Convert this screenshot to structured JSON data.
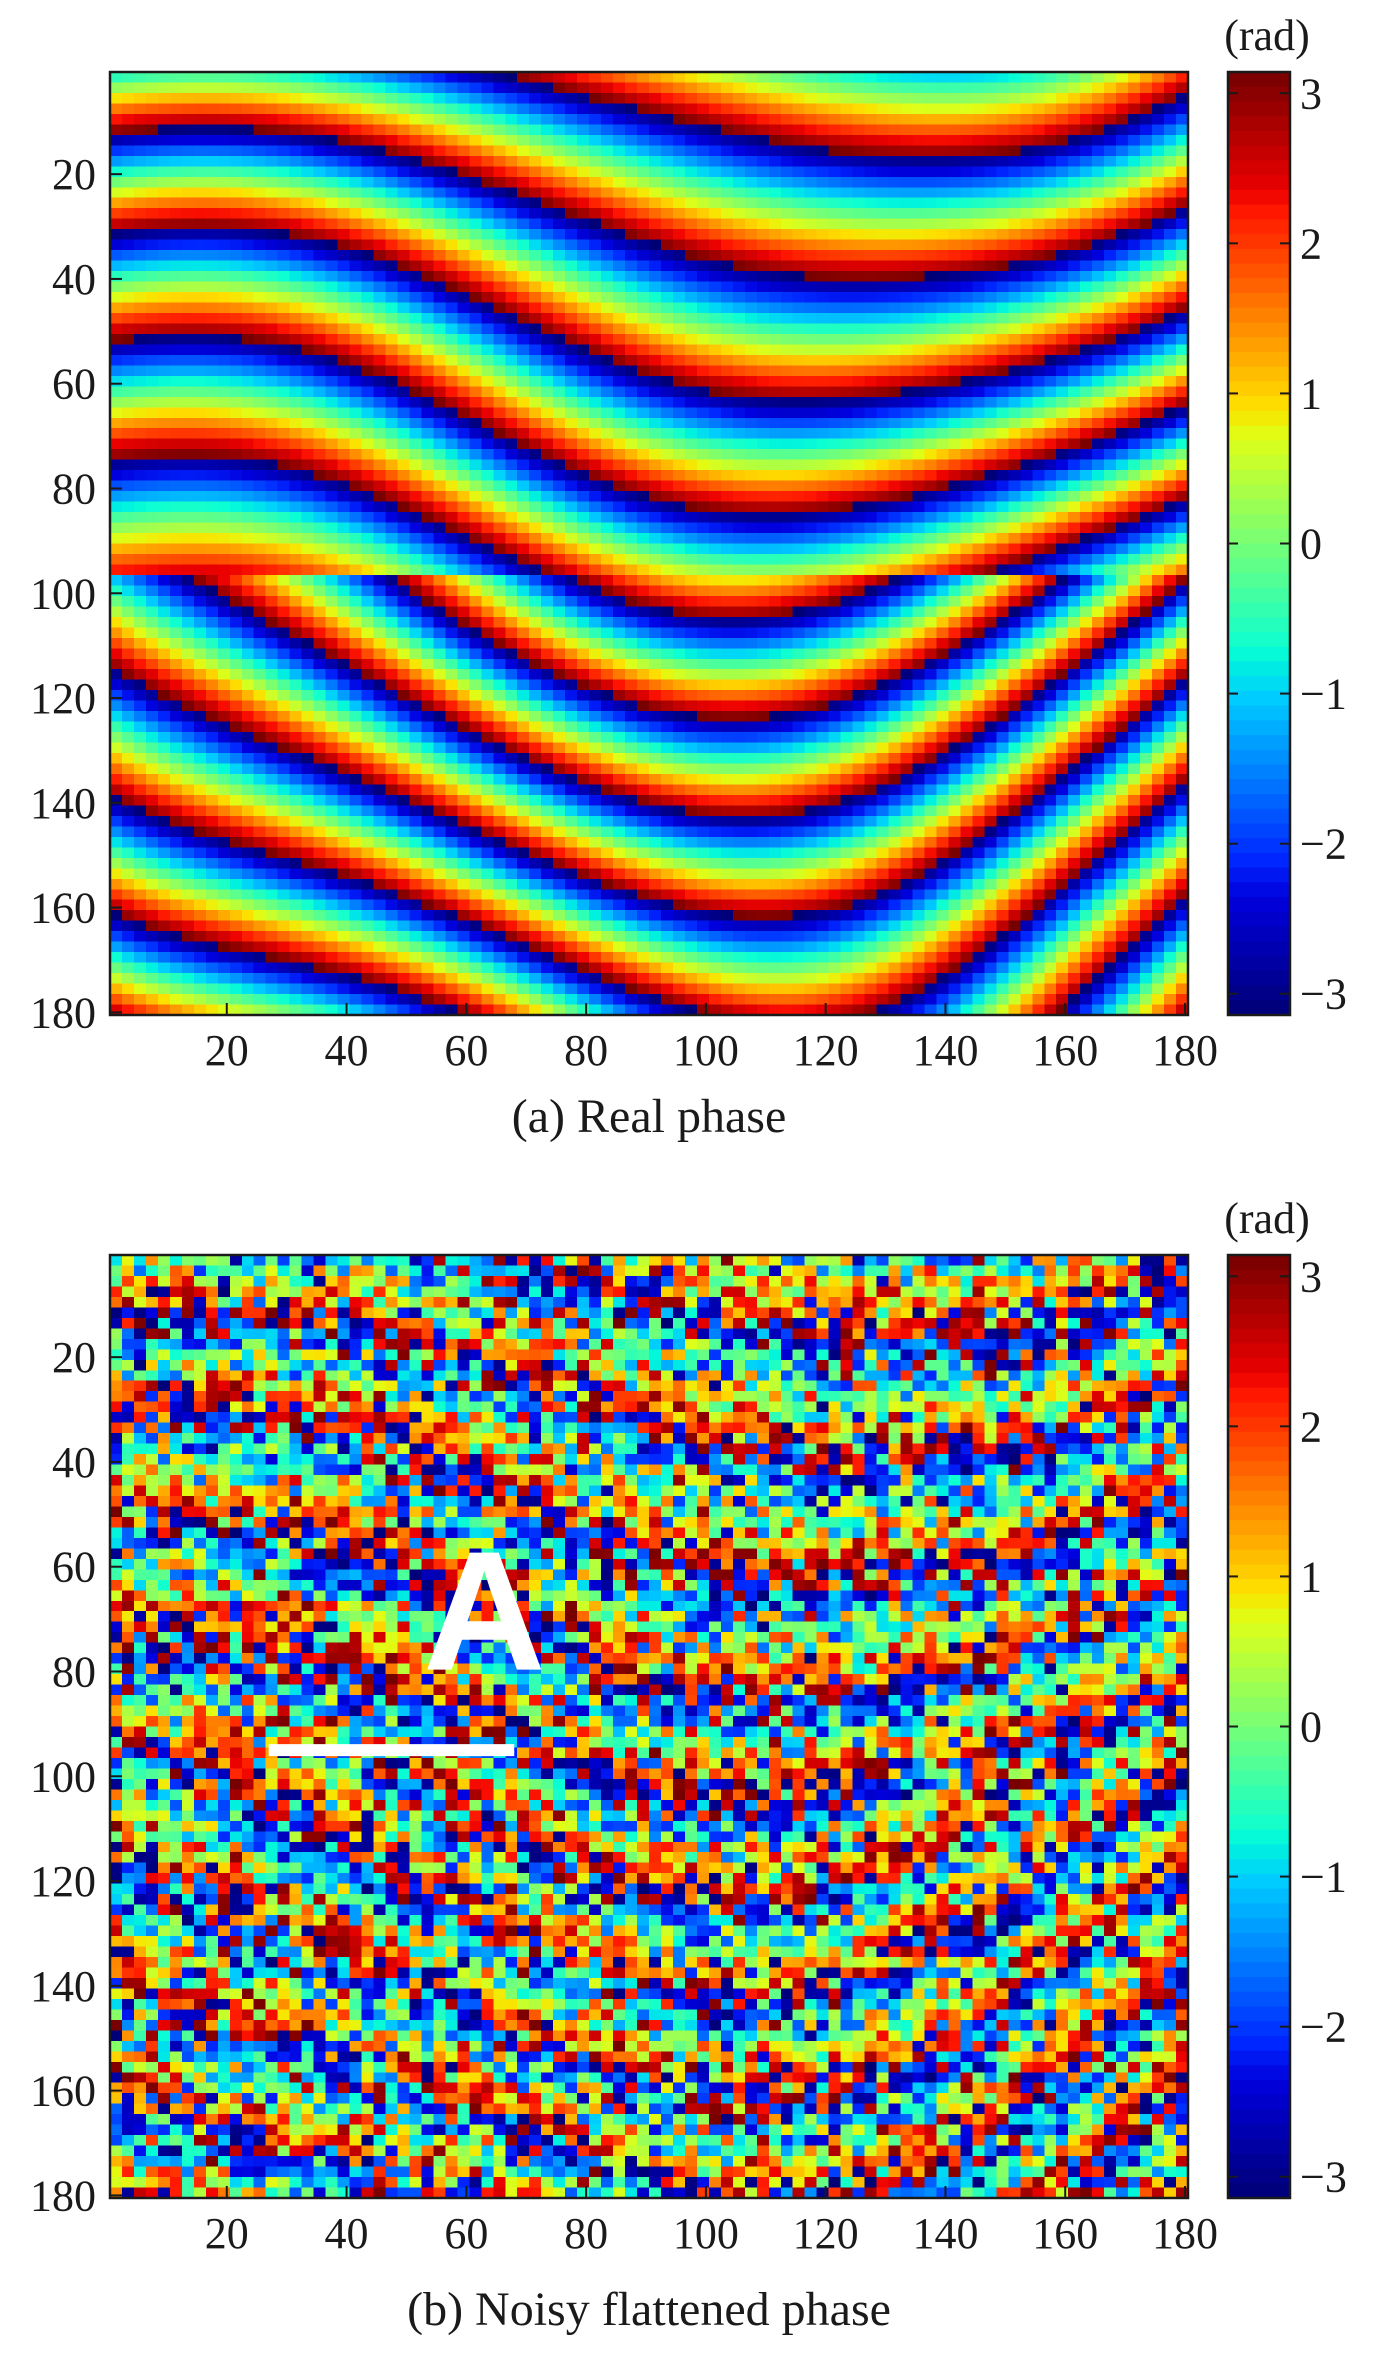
{
  "chart_data": [
    {
      "type": "heatmap",
      "caption": "(a) Real phase",
      "colorbar_unit": "(rad)",
      "colorbar_ticks": [
        "3",
        "2",
        "1",
        "0",
        "−1",
        "−2",
        "−3"
      ],
      "colorbar_values": [
        3,
        2,
        1,
        0,
        -1,
        -2,
        -3
      ],
      "clim": [
        -3.1416,
        3.1416
      ],
      "colormap": "jet",
      "xlim": [
        1,
        180
      ],
      "ylim": [
        1,
        180
      ],
      "y_axis_direction": "top-down",
      "xticks": [
        "20",
        "40",
        "60",
        "80",
        "100",
        "120",
        "140",
        "160",
        "180"
      ],
      "xtick_values": [
        20,
        40,
        60,
        80,
        100,
        120,
        140,
        160,
        180
      ],
      "yticks": [
        "20",
        "40",
        "60",
        "80",
        "100",
        "120",
        "140",
        "160",
        "180"
      ],
      "ytick_values": [
        20,
        40,
        60,
        80,
        100,
        120,
        140,
        160,
        180
      ],
      "noise": false
    },
    {
      "type": "heatmap",
      "caption": "(b) Noisy flattened phase",
      "colorbar_unit": "(rad)",
      "colorbar_ticks": [
        "3",
        "2",
        "1",
        "0",
        "−1",
        "−2",
        "−3"
      ],
      "colorbar_values": [
        3,
        2,
        1,
        0,
        -1,
        -2,
        -3
      ],
      "clim": [
        -3.1416,
        3.1416
      ],
      "colormap": "jet",
      "xlim": [
        1,
        180
      ],
      "ylim": [
        1,
        180
      ],
      "y_axis_direction": "top-down",
      "xticks": [
        "20",
        "40",
        "60",
        "80",
        "100",
        "120",
        "140",
        "160",
        "180"
      ],
      "xtick_values": [
        20,
        40,
        60,
        80,
        100,
        120,
        140,
        160,
        180
      ],
      "yticks": [
        "20",
        "40",
        "60",
        "80",
        "100",
        "120",
        "140",
        "160",
        "180"
      ],
      "ytick_values": [
        20,
        40,
        60,
        80,
        100,
        120,
        140,
        160,
        180
      ],
      "noise": true,
      "annotation": {
        "label": "A",
        "line_row": 95,
        "line_cols": [
          27,
          68
        ],
        "label_position_xy": [
          63,
          72
        ]
      }
    }
  ]
}
